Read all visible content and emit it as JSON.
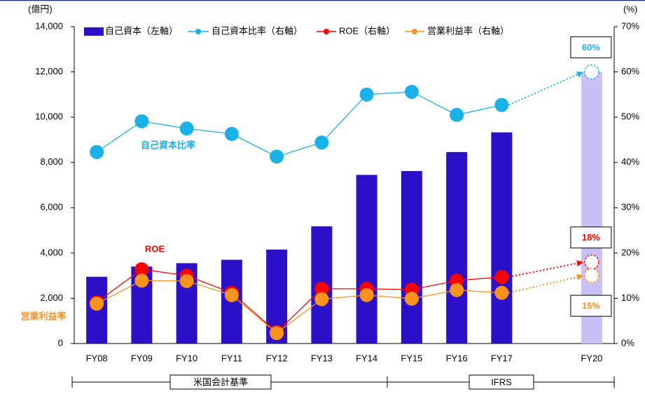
{
  "chart_data": {
    "type": "bar_line",
    "y_unit": "(億円)",
    "y2_unit": "(%)",
    "categories": [
      "FY08",
      "FY09",
      "FY10",
      "FY11",
      "FY12",
      "FY13",
      "FY14",
      "FY15",
      "FY16",
      "FY17",
      null,
      "FY20"
    ],
    "series": [
      {
        "name": "自己資本（左軸）",
        "type": "bar",
        "axis": "y",
        "color": "#2b12c9",
        "colors": [
          "#2b12c9",
          "#2b12c9",
          "#2b12c9",
          "#2b12c9",
          "#2b12c9",
          "#2b12c9",
          "#2b12c9",
          "#2b12c9",
          "#2b12c9",
          "#2b12c9",
          "#2b12c9",
          "#c9c1f5"
        ],
        "values": [
          2950,
          3400,
          3550,
          3700,
          4150,
          5180,
          7450,
          7620,
          8460,
          9330,
          null,
          12000
        ]
      },
      {
        "name": "自己資本比率（右軸）",
        "type": "line",
        "axis": "y2",
        "color": "#1ab0e8",
        "values": [
          42.3,
          49.1,
          47.5,
          46.3,
          41.3,
          44.4,
          55.0,
          55.6,
          50.5,
          52.7,
          null,
          60
        ],
        "value_labels": [
          null,
          null,
          null,
          null,
          null,
          null,
          null,
          null,
          null,
          null,
          null,
          "60%"
        ]
      },
      {
        "name": "ROE（右軸）",
        "type": "line",
        "axis": "y2",
        "color": "#ff0000",
        "values": [
          9.1,
          16.4,
          15.0,
          11.2,
          2.5,
          12.1,
          12.1,
          11.9,
          13.9,
          14.7,
          null,
          18
        ],
        "value_labels": [
          null,
          null,
          null,
          null,
          null,
          null,
          null,
          null,
          null,
          null,
          null,
          "18%"
        ]
      },
      {
        "name": "営業利益率（右軸）",
        "type": "line",
        "axis": "y2",
        "color": "#f7931e",
        "values": [
          8.8,
          13.9,
          13.8,
          10.7,
          2.3,
          9.8,
          10.7,
          9.9,
          11.8,
          11.2,
          null,
          15
        ],
        "value_labels": [
          null,
          null,
          null,
          null,
          null,
          null,
          null,
          null,
          null,
          null,
          null,
          "15%"
        ]
      }
    ],
    "ylim": [
      0,
      14000
    ],
    "yticks": [
      0,
      {
        "value": 2000,
        "label": "2,000"
      },
      {
        "value": 4000,
        "label": "4,000"
      },
      {
        "value": 6000,
        "label": "6,000"
      },
      {
        "value": 8000,
        "label": "8,000"
      },
      {
        "value": 10000,
        "label": "10,000"
      },
      {
        "value": 12000,
        "label": "12,000"
      },
      {
        "value": 14000,
        "label": "14,000"
      }
    ],
    "y2lim": [
      0,
      70
    ],
    "y2ticks": [
      {
        "value": 0,
        "label": "0%"
      },
      {
        "value": 10,
        "label": "10%"
      },
      {
        "value": 20,
        "label": "20%"
      },
      {
        "value": 30,
        "label": "30%"
      },
      {
        "value": 40,
        "label": "40%"
      },
      {
        "value": 50,
        "label": "50%"
      },
      {
        "value": 60,
        "label": "60%"
      },
      {
        "value": 70,
        "label": "70%"
      }
    ],
    "grid": false,
    "annotations": [
      {
        "text": "自己資本比率",
        "color": "#1ab0e8"
      },
      {
        "text": "ROE",
        "color": "#ff0000"
      },
      {
        "text": "営業利益率",
        "color": "#f7931e"
      }
    ],
    "standards": [
      "米国会計基準",
      "IFRS"
    ]
  }
}
